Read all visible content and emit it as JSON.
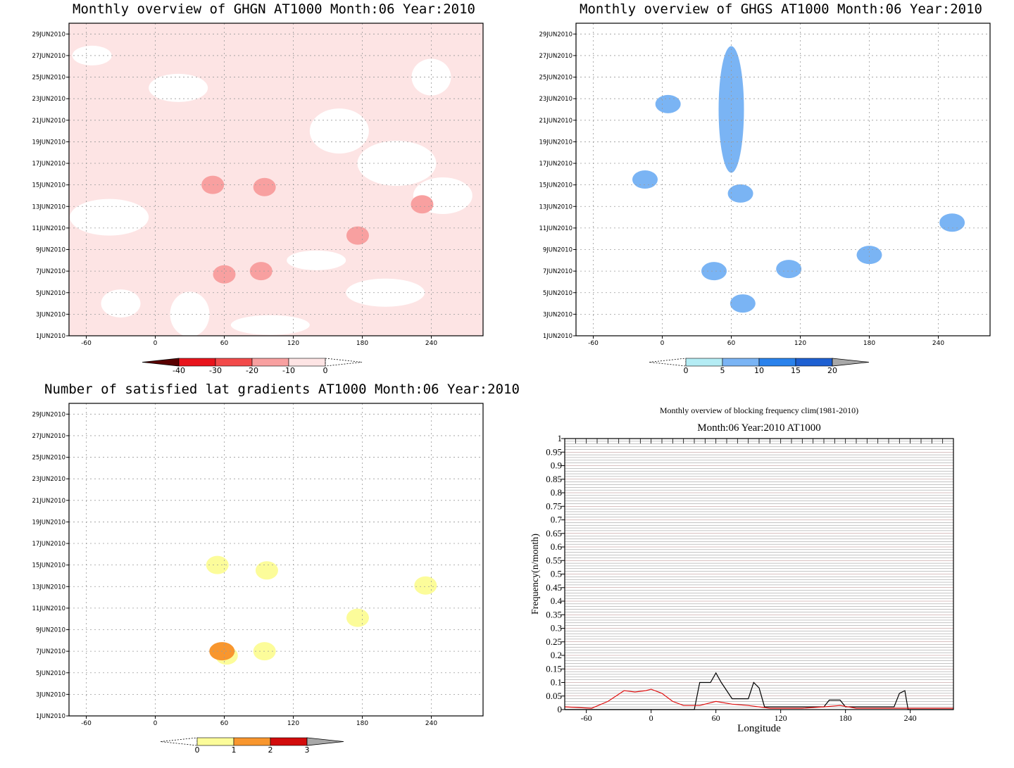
{
  "chart_data": [
    {
      "type": "heatmap",
      "title": "Monthly overview of GHGN AT1000 Month:06 Year:2010",
      "x_ticks": [
        "-60",
        "0",
        "60",
        "120",
        "180",
        "240"
      ],
      "x_tick_values": [
        -60,
        0,
        60,
        120,
        180,
        240
      ],
      "xlim": [
        -75,
        285
      ],
      "y_ticks": [
        "1JUN2010",
        "3JUN2010",
        "5JUN2010",
        "7JUN2010",
        "9JUN2010",
        "11JUN2010",
        "13JUN2010",
        "15JUN2010",
        "17JUN2010",
        "19JUN2010",
        "21JUN2010",
        "23JUN2010",
        "25JUN2010",
        "27JUN2010",
        "29JUN2010"
      ],
      "ylim_days": [
        1,
        30
      ],
      "grid": true,
      "colorbar": {
        "labels": [
          "-40",
          "-30",
          "-20",
          "-10",
          "0"
        ],
        "levels": [
          -40,
          -30,
          -20,
          -10,
          0
        ],
        "colors": [
          "#5a0000",
          "#e8141c",
          "#f24a4a",
          "#f8a0a0",
          "#fde4e4"
        ]
      },
      "background_class": "#fde4e4",
      "features": [
        {
          "lon": 50,
          "day": 15,
          "value": -20
        },
        {
          "lon": 95,
          "day": 14.8,
          "value": -20
        },
        {
          "lon": 232,
          "day": 13.2,
          "value": -20
        },
        {
          "lon": 176,
          "day": 10.3,
          "value": -20
        },
        {
          "lon": 60,
          "day": 6.7,
          "value": -20
        },
        {
          "lon": 92,
          "day": 7,
          "value": -20
        }
      ]
    },
    {
      "type": "heatmap",
      "title": "Monthly overview of GHGS AT1000 Month:06 Year:2010",
      "x_ticks": [
        "-60",
        "0",
        "60",
        "120",
        "180",
        "240"
      ],
      "x_tick_values": [
        -60,
        0,
        60,
        120,
        180,
        240
      ],
      "xlim": [
        -75,
        285
      ],
      "y_ticks": [
        "1JUN2010",
        "3JUN2010",
        "5JUN2010",
        "7JUN2010",
        "9JUN2010",
        "11JUN2010",
        "13JUN2010",
        "15JUN2010",
        "17JUN2010",
        "19JUN2010",
        "21JUN2010",
        "23JUN2010",
        "25JUN2010",
        "27JUN2010",
        "29JUN2010"
      ],
      "ylim_days": [
        1,
        30
      ],
      "grid": true,
      "colorbar": {
        "labels": [
          "0",
          "5",
          "10",
          "15",
          "20"
        ],
        "levels": [
          0,
          5,
          10,
          15,
          20
        ],
        "colors": [
          "#b4ecf4",
          "#7ab4f4",
          "#2a82ec",
          "#1e60d2",
          "#a8a8a8"
        ]
      },
      "features": [
        {
          "lon": 60,
          "day": 22,
          "value": 10
        },
        {
          "lon": 5,
          "day": 22.5,
          "value": 10
        },
        {
          "lon": -15,
          "day": 15.5,
          "value": 10
        },
        {
          "lon": 68,
          "day": 14.2,
          "value": 10
        },
        {
          "lon": 110,
          "day": 7.2,
          "value": 10
        },
        {
          "lon": 45,
          "day": 7,
          "value": 10
        },
        {
          "lon": 70,
          "day": 4,
          "value": 10
        },
        {
          "lon": 180,
          "day": 8.5,
          "value": 10
        },
        {
          "lon": 252,
          "day": 11.5,
          "value": 10
        }
      ]
    },
    {
      "type": "heatmap",
      "title": "Number of satisfied lat gradients AT1000 Month:06 Year:2010",
      "x_ticks": [
        "-60",
        "0",
        "60",
        "120",
        "180",
        "240"
      ],
      "x_tick_values": [
        -60,
        0,
        60,
        120,
        180,
        240
      ],
      "xlim": [
        -75,
        285
      ],
      "y_ticks": [
        "1JUN2010",
        "3JUN2010",
        "5JUN2010",
        "7JUN2010",
        "9JUN2010",
        "11JUN2010",
        "13JUN2010",
        "15JUN2010",
        "17JUN2010",
        "19JUN2010",
        "21JUN2010",
        "23JUN2010",
        "25JUN2010",
        "27JUN2010",
        "29JUN2010"
      ],
      "ylim_days": [
        1,
        30
      ],
      "grid": true,
      "colorbar": {
        "labels": [
          "0",
          "1",
          "2",
          "3"
        ],
        "levels": [
          0,
          1,
          2,
          3
        ],
        "colors": [
          "#fcfc9a",
          "#f8962e",
          "#d20c0c",
          "#a8a8a8"
        ]
      },
      "features": [
        {
          "lon": 54,
          "day": 15,
          "value": 1
        },
        {
          "lon": 97,
          "day": 14.5,
          "value": 1
        },
        {
          "lon": 235,
          "day": 13.1,
          "value": 1
        },
        {
          "lon": 176,
          "day": 10.1,
          "value": 1
        },
        {
          "lon": 62,
          "day": 6.6,
          "value": 1
        },
        {
          "lon": 95,
          "day": 7,
          "value": 1
        },
        {
          "lon": 58,
          "day": 7,
          "value": 2
        }
      ]
    },
    {
      "type": "line",
      "title": "Monthly overview of blocking frequency clim(1981-2010)",
      "subtitle": "Month:06 Year:2010  AT1000",
      "xlabel": "Longitude",
      "ylabel": "Frequency(n/month)",
      "x_ticks": [
        "-60",
        "0",
        "60",
        "120",
        "180",
        "240"
      ],
      "x_tick_values": [
        -60,
        0,
        60,
        120,
        180,
        240
      ],
      "xlim": [
        -80,
        280
      ],
      "ylim": [
        0,
        1
      ],
      "y_ticks": [
        "0",
        "0.05",
        "0.1",
        "0.15",
        "0.2",
        "0.25",
        "0.3",
        "0.35",
        "0.4",
        "0.45",
        "0.5",
        "0.55",
        "0.6",
        "0.65",
        "0.7",
        "0.75",
        "0.8",
        "0.85",
        "0.9",
        "0.95",
        "1"
      ],
      "series": [
        {
          "color": "#000000",
          "x": [
            -80,
            40,
            45,
            55,
            60,
            65,
            75,
            90,
            95,
            100,
            105,
            160,
            165,
            175,
            180,
            225,
            230,
            235,
            238,
            280
          ],
          "y": [
            0,
            0,
            0.1,
            0.1,
            0.135,
            0.1,
            0.04,
            0.04,
            0.1,
            0.08,
            0.01,
            0.01,
            0.035,
            0.035,
            0.01,
            0.01,
            0.06,
            0.07,
            0,
            0
          ]
        },
        {
          "color": "#e01010",
          "x": [
            -80,
            -55,
            -40,
            -25,
            -15,
            -5,
            0,
            10,
            20,
            30,
            45,
            60,
            75,
            90,
            110,
            140,
            160,
            175,
            190,
            220,
            240,
            280
          ],
          "y": [
            0.01,
            0.005,
            0.03,
            0.07,
            0.065,
            0.07,
            0.075,
            0.06,
            0.03,
            0.015,
            0.015,
            0.03,
            0.02,
            0.015,
            0.005,
            0.005,
            0.01,
            0.015,
            0.005,
            0.005,
            0.005,
            0.005
          ]
        }
      ]
    }
  ]
}
